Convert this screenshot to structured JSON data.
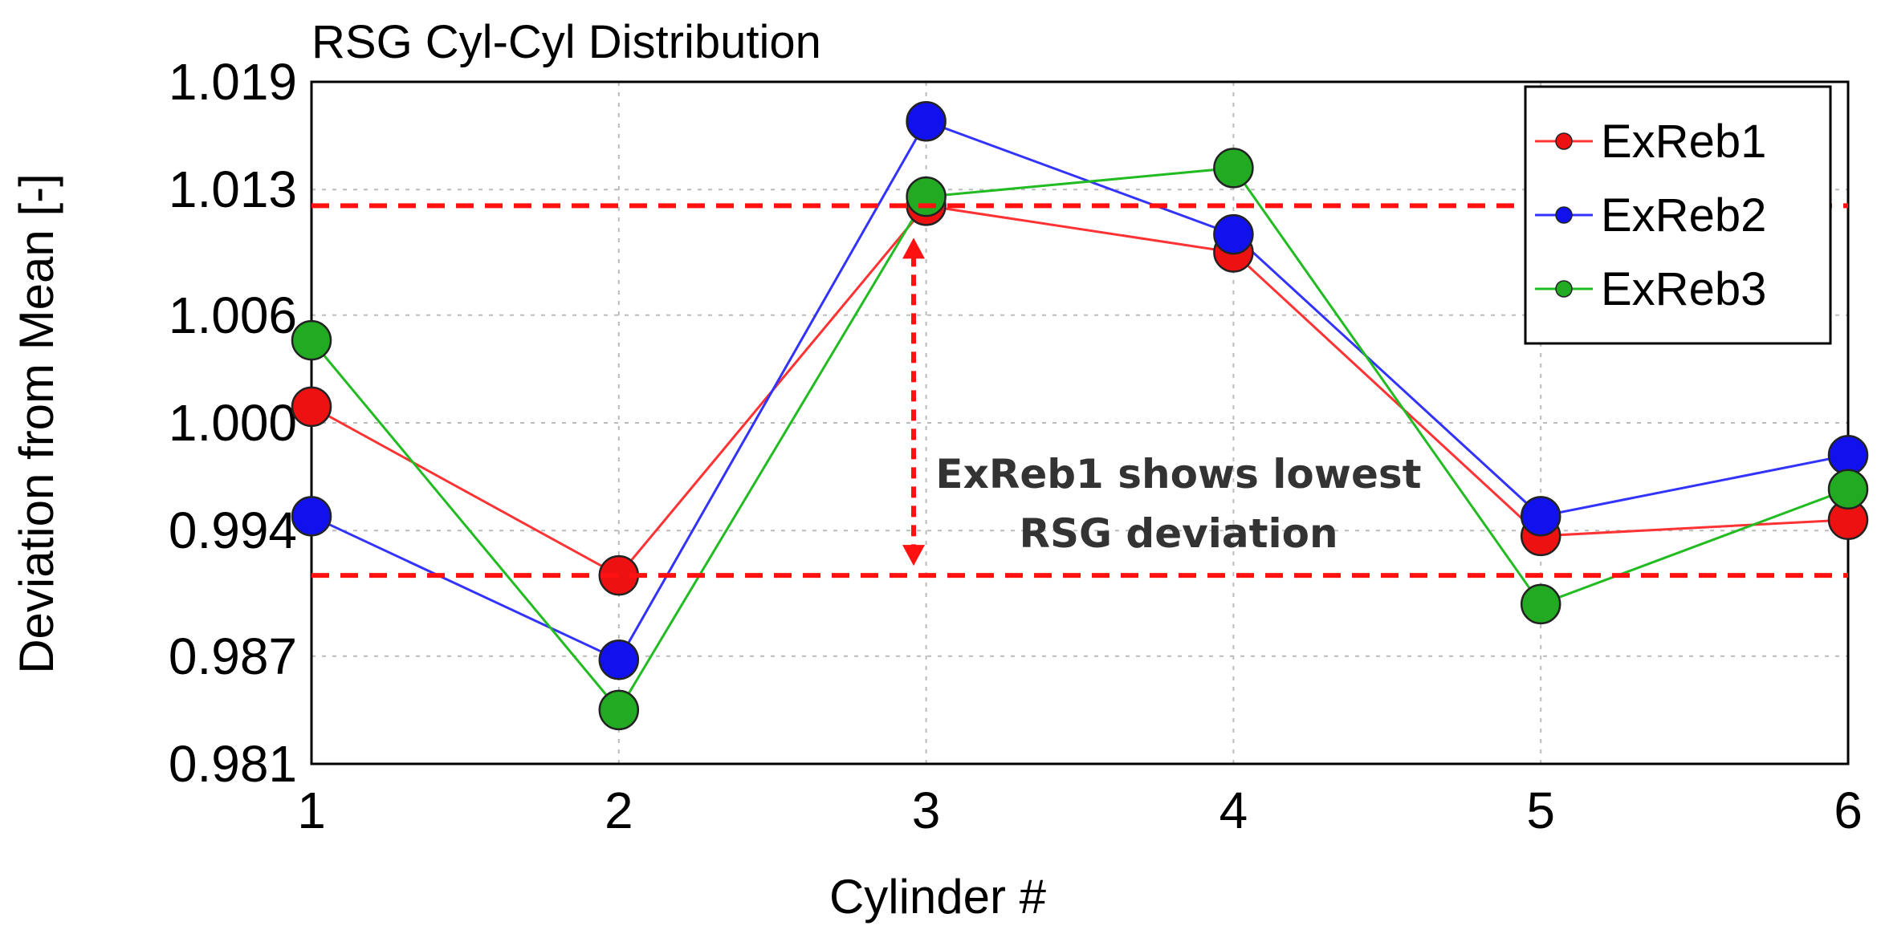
{
  "chart_data": {
    "type": "line",
    "title": "RSG Cyl-Cyl Distribution",
    "xlabel": "Cylinder #",
    "ylabel": "Deviation from Mean [-]",
    "x": [
      1,
      2,
      3,
      4,
      5,
      6
    ],
    "x_tick_labels": [
      "1",
      "2",
      "3",
      "4",
      "5",
      "6"
    ],
    "ylim": [
      0.981,
      1.019
    ],
    "y_ticks": [
      0.981,
      0.987,
      0.994,
      1.0,
      1.006,
      1.013,
      1.019
    ],
    "y_tick_labels": [
      "0.981",
      "0.987",
      "0.994",
      "1.000",
      "1.006",
      "1.013",
      "1.019"
    ],
    "grid": true,
    "legend_position": "top-right",
    "series": [
      {
        "name": "ExReb1",
        "color": "#ff3333",
        "marker_color": "#ee1111",
        "values": [
          1.0009,
          0.9915,
          1.0121,
          1.0095,
          0.9937,
          0.9946
        ]
      },
      {
        "name": "ExReb2",
        "color": "#3333ff",
        "marker_color": "#1111ee",
        "values": [
          0.9948,
          0.9868,
          1.0168,
          1.0105,
          0.9948,
          0.9982
        ]
      },
      {
        "name": "ExReb3",
        "color": "#22bb22",
        "marker_color": "#22aa22",
        "values": [
          1.0046,
          0.984,
          1.0126,
          1.0142,
          0.9899,
          0.9963
        ]
      }
    ],
    "reference_lines": {
      "upper": 1.0121,
      "lower": 0.9915,
      "color": "#ff1111",
      "style": "dashed"
    },
    "annotation": {
      "line1": "ExReb1 shows lowest",
      "line2": "RSG deviation"
    }
  }
}
